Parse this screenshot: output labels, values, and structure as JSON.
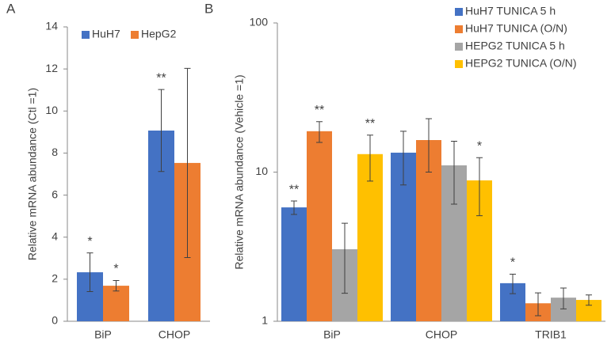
{
  "chart_data": [
    {
      "type": "bar",
      "panel": "A",
      "ylabel": "Relative mRNA abundance (Ctl =1)",
      "categories": [
        "BiP",
        "CHOP"
      ],
      "series": [
        {
          "name": "HuH7",
          "color": "#4472c4",
          "values": [
            2.33,
            9.07
          ],
          "errors": [
            0.92,
            1.95
          ],
          "annotations": [
            "*",
            "**"
          ]
        },
        {
          "name": "HepG2",
          "color": "#ed7d31",
          "values": [
            1.69,
            7.53
          ],
          "errors": [
            0.25,
            4.5
          ],
          "annotations": [
            "*",
            null
          ]
        }
      ],
      "ylim": [
        0,
        14
      ],
      "yticks": [
        0,
        2,
        4,
        6,
        8,
        10,
        12,
        14
      ],
      "log": false,
      "grid": false,
      "legend": "top-left"
    },
    {
      "type": "bar",
      "panel": "B",
      "ylabel": "Relative mRNA abundance (Vehicle =1)",
      "categories": [
        "BiP",
        "CHOP",
        "TRIB1"
      ],
      "series": [
        {
          "name": "HuH7 TUNICA 5 h",
          "color": "#4472c4",
          "values": [
            5.8,
            13.5,
            1.8
          ],
          "errors": [
            0.6,
            5.3,
            0.27
          ],
          "annotations": [
            "**",
            null,
            "*"
          ]
        },
        {
          "name": "HuH7 TUNICA (O/N)",
          "color": "#ed7d31",
          "values": [
            18.8,
            16.4,
            1.32
          ],
          "errors": [
            3,
            6.4,
            0.23
          ],
          "annotations": [
            "**",
            null,
            null
          ]
        },
        {
          "name": "HEPG2 TUNICA 5 h",
          "color": "#a5a5a5",
          "values": [
            3.04,
            11.1,
            1.44
          ],
          "errors": [
            1.5,
            5,
            0.23
          ],
          "annotations": [
            null,
            null,
            null
          ]
        },
        {
          "name": "HEPG2 TUNICA (O/N)",
          "color": "#ffc000",
          "values": [
            13.2,
            8.8,
            1.39
          ],
          "errors": [
            4.5,
            3.7,
            0.11
          ],
          "annotations": [
            "**",
            "*",
            null
          ]
        }
      ],
      "ylim": [
        1,
        100
      ],
      "yticks": [
        1,
        10,
        100
      ],
      "log": true,
      "grid": false,
      "legend": "top-right"
    }
  ]
}
